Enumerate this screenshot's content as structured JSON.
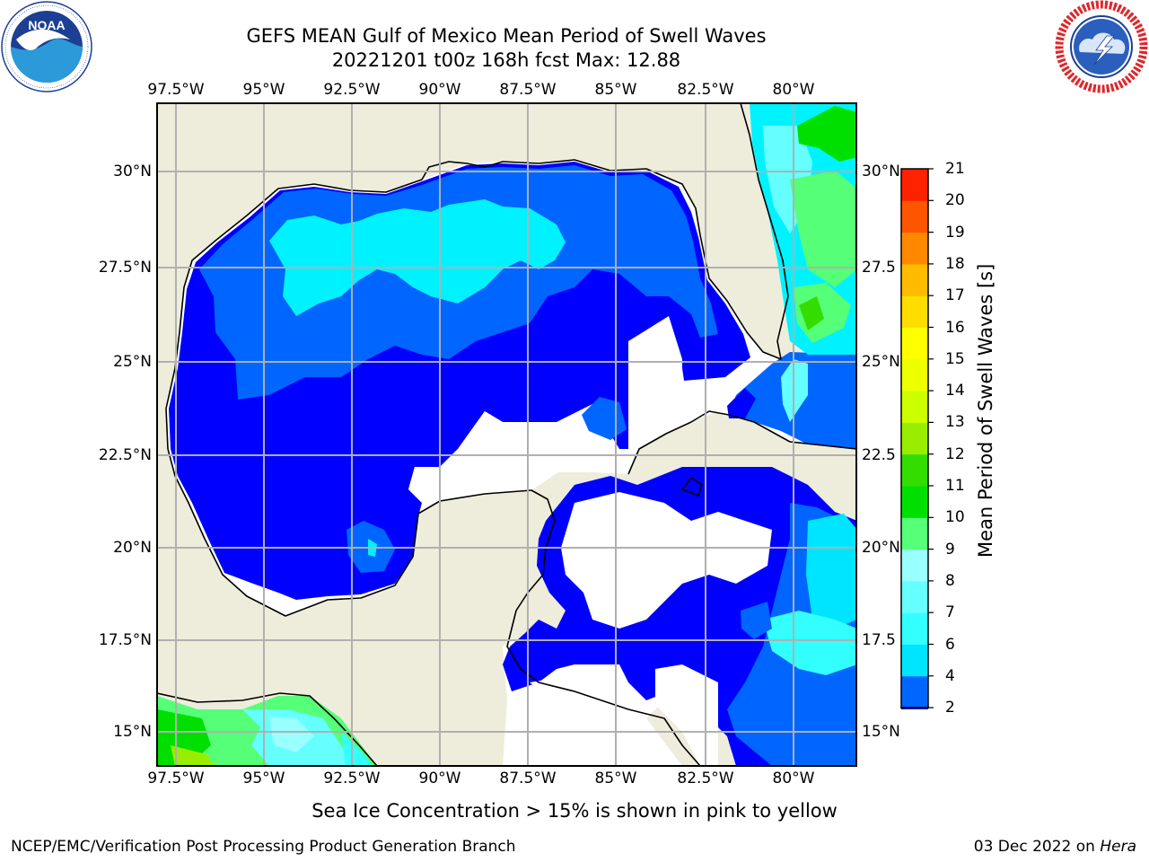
{
  "header": {
    "title_line1": "GEFS MEAN Gulf of Mexico Mean Period of Swell Waves",
    "title_line2": "20221201 t00z 168h fcst   Max: 12.88"
  },
  "logos": {
    "left": "NOAA",
    "left_ring_text": "NATIONAL OCEANIC AND ATMOSPHERIC ADMINISTRATION · U.S. DEPARTMENT OF COMMERCE",
    "right_ring_text": "NATIONAL WEATHER SERVICE"
  },
  "map": {
    "lon_ticks": [
      "97.5°W",
      "95°W",
      "92.5°W",
      "90°W",
      "87.5°W",
      "85°W",
      "82.5°W",
      "80°W"
    ],
    "lat_ticks_left": [
      "30°N",
      "27.5°N",
      "25°N",
      "22.5°N",
      "20°N",
      "17.5°N",
      "15°N"
    ],
    "lat_ticks_right": [
      "30°N",
      "27.5",
      "25°N",
      "22.5",
      "20°N",
      "17.5",
      "15°N"
    ],
    "extent": {
      "lon_min": -98.0,
      "lon_max": -78.1,
      "lat_min": 14.0,
      "lat_max": 31.6
    },
    "colors": {
      "land": "#eeeddb",
      "no_data": "#ffffff",
      "grid": "#b0b0b0"
    }
  },
  "colorbar": {
    "title": "Mean Period of Swell Waves [s]",
    "levels": [
      "2",
      "4",
      "6",
      "7",
      "8",
      "9",
      "10",
      "11",
      "12",
      "13",
      "14",
      "15",
      "16",
      "17",
      "18",
      "19",
      "20",
      "21"
    ],
    "colors": [
      "#0066ff",
      "#00e5ff",
      "#33ffff",
      "#66ffff",
      "#99ffff",
      "#55ff77",
      "#00e000",
      "#33dd00",
      "#99ee00",
      "#ccff00",
      "#eeff00",
      "#ffff00",
      "#ffdd00",
      "#ffbb00",
      "#ff8800",
      "#ff5500",
      "#ff2200"
    ],
    "under_color": "#0000ff"
  },
  "caption": "Sea Ice Concentration > 15% is shown in pink to yellow",
  "footer": {
    "left": "NCEP/EMC/Verification Post Processing Product Generation Branch",
    "right_prefix": "03 Dec 2022 on ",
    "right_host": "Hera"
  }
}
